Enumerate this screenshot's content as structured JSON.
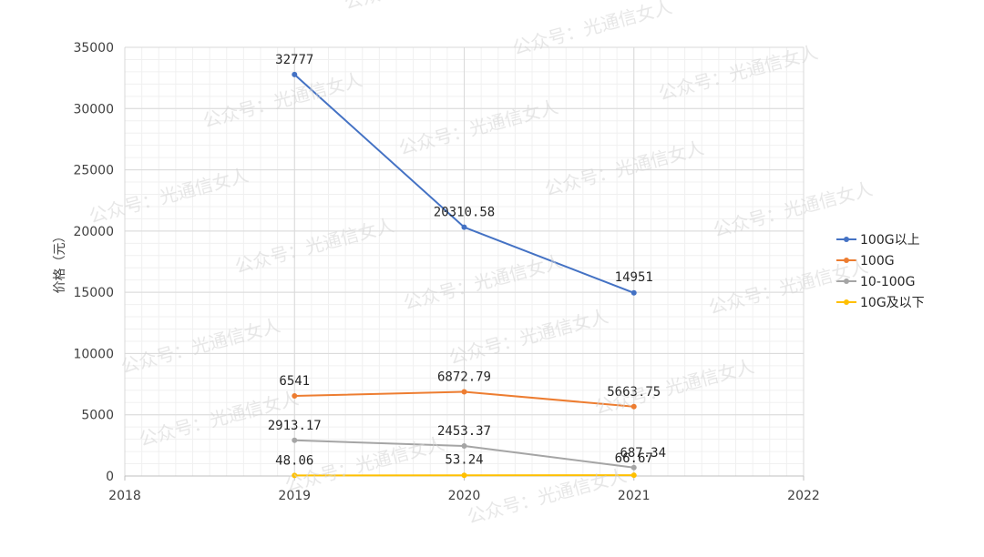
{
  "chart_data": {
    "type": "line",
    "title": "",
    "xlabel": "",
    "ylabel": "价格（元）",
    "xlim": [
      2018,
      2022
    ],
    "ylim": [
      0,
      35000
    ],
    "x_ticks": [
      "2018",
      "2019",
      "2020",
      "2021",
      "2022"
    ],
    "y_ticks": [
      "0",
      "5000",
      "10000",
      "15000",
      "20000",
      "25000",
      "30000",
      "35000"
    ],
    "grid": true,
    "legend_position": "right",
    "series": [
      {
        "name": "100G以上",
        "color": "#4472c4",
        "x": [
          2019,
          2020,
          2021
        ],
        "values": [
          32777,
          20310.58,
          14951
        ],
        "labels": [
          "32777",
          "20310.58",
          "14951"
        ]
      },
      {
        "name": "100G",
        "color": "#ed7d31",
        "x": [
          2019,
          2020,
          2021
        ],
        "values": [
          6541,
          6872.79,
          5663.75
        ],
        "labels": [
          "6541",
          "6872.79",
          "5663.75"
        ]
      },
      {
        "name": "10-100G",
        "color": "#a5a5a5",
        "x": [
          2019,
          2020,
          2021
        ],
        "values": [
          2913.17,
          2453.37,
          687.34
        ],
        "labels": [
          "2913.17",
          "2453.37",
          "687.34"
        ]
      },
      {
        "name": "10G及以下",
        "color": "#ffc000",
        "x": [
          2019,
          2020,
          2021
        ],
        "values": [
          48.06,
          53.24,
          66.67
        ],
        "labels": [
          "48.06",
          "53.24",
          "66.67"
        ]
      }
    ]
  },
  "watermark": "公众号：光通信女人"
}
